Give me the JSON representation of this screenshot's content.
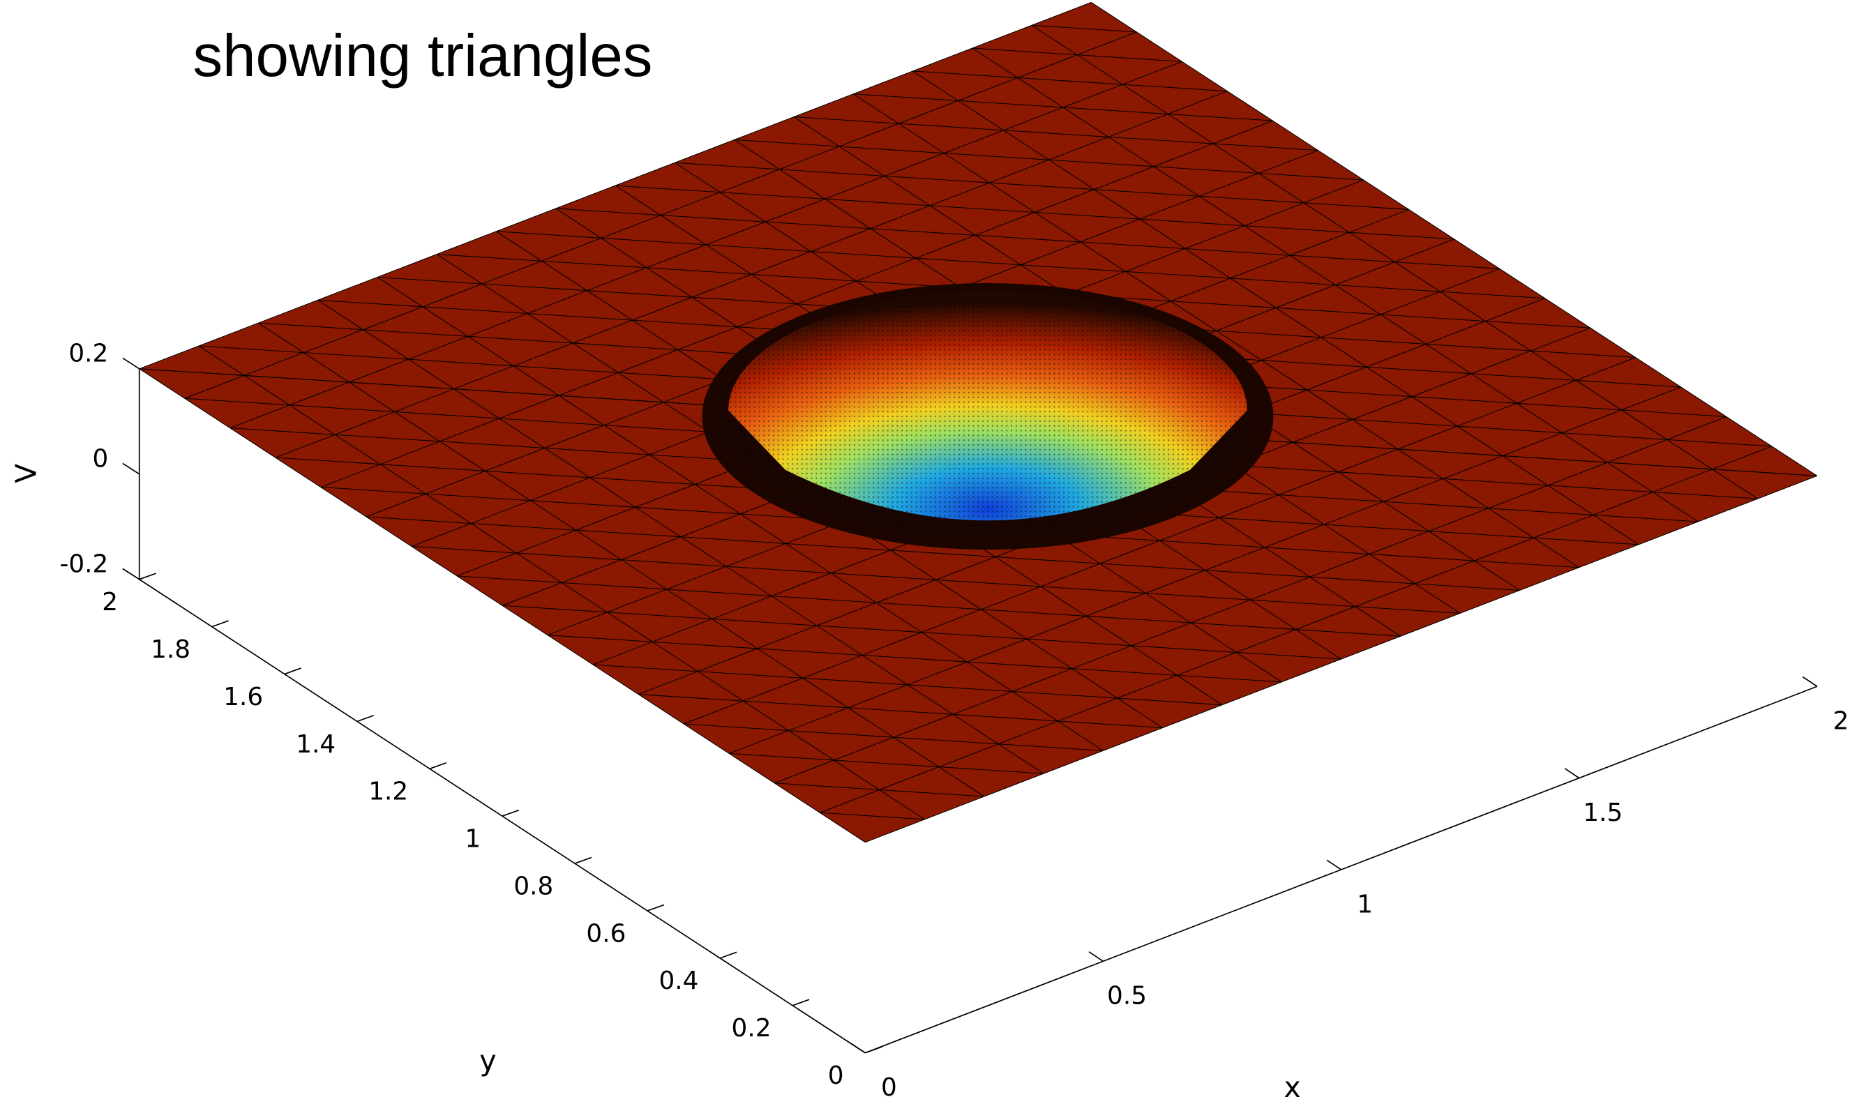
{
  "chart_data": {
    "type": "surface3d",
    "title": "showing triangles",
    "xlabel": "x",
    "ylabel": "y",
    "zlabel": "V",
    "xlim": [
      0,
      2
    ],
    "ylim": [
      0,
      2
    ],
    "zlim": [
      -0.2,
      0.2
    ],
    "xticks": [
      0,
      0.5,
      1,
      1.5,
      2
    ],
    "yticks": [
      0,
      0.2,
      0.4,
      0.6,
      0.8,
      1,
      1.2,
      1.4,
      1.6,
      1.8,
      2
    ],
    "zticks": [
      -0.2,
      0,
      0.2
    ],
    "color": "#8b1800"
  }
}
